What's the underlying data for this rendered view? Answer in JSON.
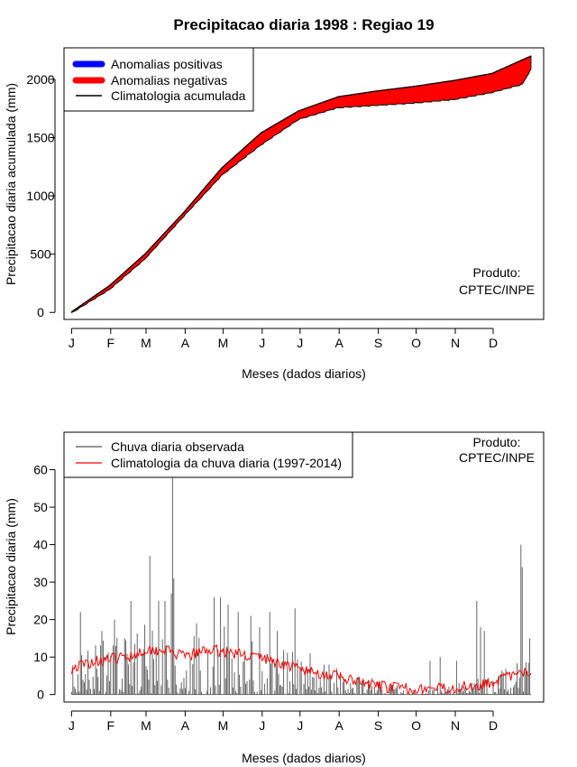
{
  "title": "Precipitacao diaria 1998 : Regiao 19",
  "months": [
    "J",
    "F",
    "M",
    "A",
    "M",
    "J",
    "J",
    "A",
    "S",
    "O",
    "N",
    "D"
  ],
  "xlabel": "Meses (dados diarios)",
  "product_line1": "Produto:",
  "product_line2": "CPTEC/INPE",
  "colors": {
    "positive": "#0000ff",
    "negative": "#ff0000",
    "clim_line": "#000000",
    "obs_bar": "#555555",
    "clim_daily": "#ff0000"
  },
  "chart_data": [
    {
      "type": "area",
      "ylabel": "Precipitacao diaria acumulada (mm)",
      "ylim": [
        -60,
        2270
      ],
      "xlim": [
        -5,
        375
      ],
      "yticks": [
        0,
        500,
        1000,
        1500,
        2000
      ],
      "legend": {
        "position": "top-left",
        "items": [
          "Anomalias positivas",
          "Anomalias negativas",
          "Climatologia acumulada"
        ]
      },
      "climatology_keypoints": {
        "day": [
          1,
          31,
          59,
          90,
          120,
          151,
          181,
          212,
          243,
          273,
          304,
          334,
          365
        ],
        "value": [
          5,
          230,
          500,
          860,
          1240,
          1540,
          1730,
          1850,
          1900,
          1940,
          1990,
          2050,
          2200
        ]
      },
      "observed_keypoints": {
        "day": [
          1,
          31,
          45,
          59,
          90,
          120,
          151,
          181,
          212,
          243,
          273,
          304,
          334,
          358,
          365
        ],
        "value": [
          0,
          200,
          330,
          460,
          830,
          1180,
          1440,
          1660,
          1760,
          1780,
          1800,
          1830,
          1890,
          1960,
          2090
        ]
      }
    },
    {
      "type": "bar",
      "ylabel": "Precipitacao diaria (mm)",
      "ylim": [
        -2,
        70
      ],
      "xlim": [
        -5,
        375
      ],
      "yticks": [
        0,
        10,
        20,
        30,
        40,
        50,
        60
      ],
      "legend": {
        "position": "top-left",
        "items": [
          "Chuva diaria observada",
          "Climatologia da chuva diaria (1997-2014)"
        ]
      },
      "notable_observed_days": [
        {
          "day": 8,
          "value": 22
        },
        {
          "day": 25,
          "value": 17
        },
        {
          "day": 35,
          "value": 20
        },
        {
          "day": 48,
          "value": 25
        },
        {
          "day": 63,
          "value": 37
        },
        {
          "day": 70,
          "value": 25
        },
        {
          "day": 75,
          "value": 25
        },
        {
          "day": 80,
          "value": 27
        },
        {
          "day": 81,
          "value": 59
        },
        {
          "day": 82,
          "value": 31
        },
        {
          "day": 100,
          "value": 19
        },
        {
          "day": 114,
          "value": 26
        },
        {
          "day": 119,
          "value": 26
        },
        {
          "day": 125,
          "value": 24
        },
        {
          "day": 133,
          "value": 22
        },
        {
          "day": 143,
          "value": 21
        },
        {
          "day": 150,
          "value": 18
        },
        {
          "day": 158,
          "value": 22
        },
        {
          "day": 164,
          "value": 17
        },
        {
          "day": 178,
          "value": 23
        },
        {
          "day": 190,
          "value": 11
        },
        {
          "day": 205,
          "value": 8
        },
        {
          "day": 285,
          "value": 9
        },
        {
          "day": 293,
          "value": 10
        },
        {
          "day": 306,
          "value": 9
        },
        {
          "day": 322,
          "value": 25
        },
        {
          "day": 325,
          "value": 18
        },
        {
          "day": 328,
          "value": 17
        },
        {
          "day": 357,
          "value": 40
        },
        {
          "day": 358,
          "value": 34
        },
        {
          "day": 364,
          "value": 15
        }
      ],
      "climatology_profile": {
        "day": [
          1,
          20,
          45,
          60,
          75,
          90,
          110,
          130,
          150,
          170,
          190,
          210,
          230,
          250,
          270,
          290,
          310,
          330,
          350,
          365
        ],
        "value": [
          7,
          9,
          10,
          12,
          12,
          10,
          12,
          11,
          10,
          8,
          6,
          5,
          3,
          2,
          1.5,
          1.5,
          2,
          3,
          5,
          6
        ]
      }
    }
  ]
}
